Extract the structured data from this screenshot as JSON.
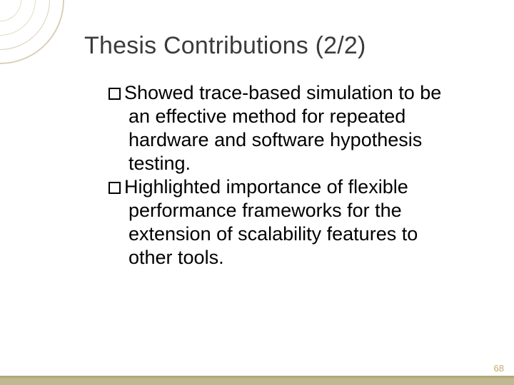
{
  "title": "Thesis Contributions (2/2)",
  "bullets": [
    {
      "text": "Showed trace-based simulation to be an effective method for repeated hardware and software hypothesis testing."
    },
    {
      "text": "Highlighted importance of flexible performance frameworks for the extension of scalability features to other tools."
    }
  ],
  "page_number": "68",
  "styling": {
    "slide_width": 720,
    "slide_height": 540,
    "background_color": "#ffffff",
    "title_color": "#3b3b3b",
    "title_fontsize": 34,
    "body_fontsize": 27,
    "body_color": "#000000",
    "bullet_marker": "hollow-square",
    "bullet_marker_size": 17,
    "bottom_bar_color": "#c0b890",
    "bottom_bar_accent": "#b0a878",
    "corner_circle_colors": [
      "#d9d0b8",
      "#d9d0b8",
      "#e2dcc6",
      "#e2dcc6"
    ],
    "page_number_color": "#c9a96a",
    "page_number_fontsize": 13
  }
}
